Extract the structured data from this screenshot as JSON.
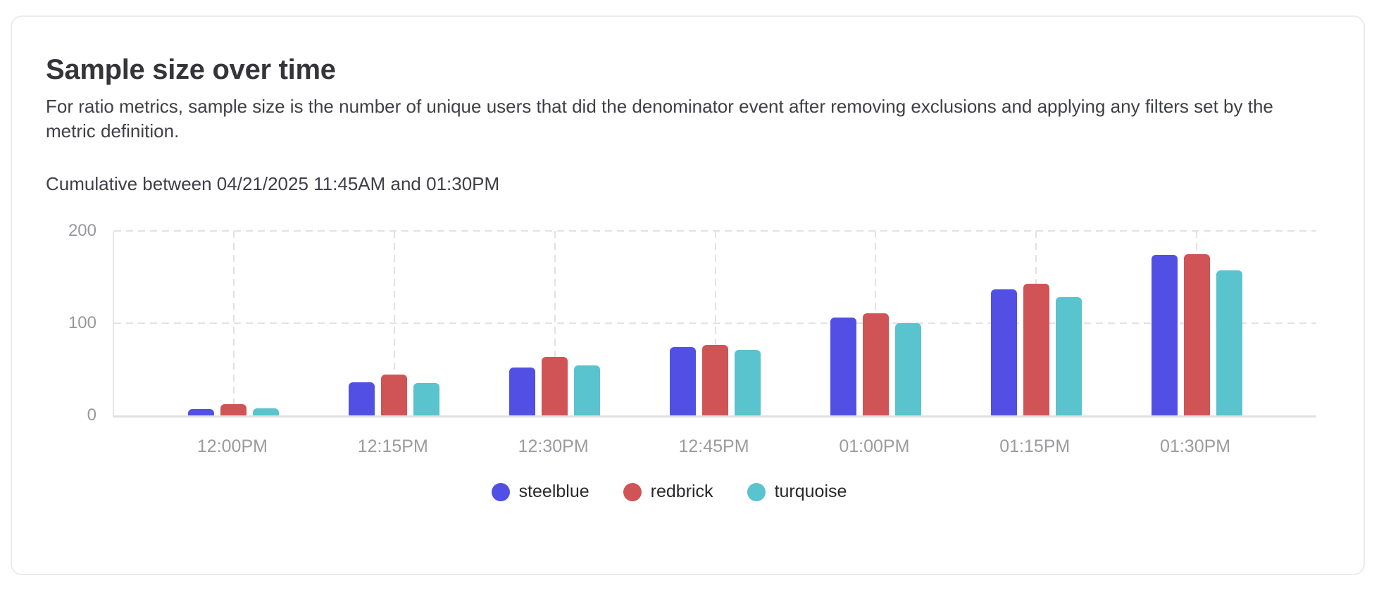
{
  "card": {
    "title": "Sample size over time",
    "description": "For ratio metrics, sample size is the number of unique users that did the denominator event after removing exclusions and applying any filters set by the metric definition.",
    "range_label": "Cumulative between 04/21/2025 11:45AM and 01:30PM"
  },
  "chart_data": {
    "type": "bar",
    "title": "Sample size over time",
    "categories": [
      "12:00PM",
      "12:15PM",
      "12:30PM",
      "12:45PM",
      "01:00PM",
      "01:15PM",
      "01:30PM"
    ],
    "series": [
      {
        "name": "steelblue",
        "color": "#5250e4",
        "values": [
          7,
          36,
          52,
          74,
          106,
          137,
          174
        ]
      },
      {
        "name": "redbrick",
        "color": "#d05456",
        "values": [
          12,
          44,
          63,
          76,
          111,
          143,
          175
        ]
      },
      {
        "name": "turquoise",
        "color": "#59c3ce",
        "values": [
          8,
          35,
          54,
          71,
          100,
          128,
          157
        ]
      }
    ],
    "xlabel": "",
    "ylabel": "",
    "ylim": [
      0,
      200
    ],
    "yticks": [
      0,
      100,
      200
    ],
    "grid": "dashed",
    "legend_position": "bottom",
    "axis_label_color": "#9b9ba1",
    "gridline_color": "#e2e2e5"
  }
}
